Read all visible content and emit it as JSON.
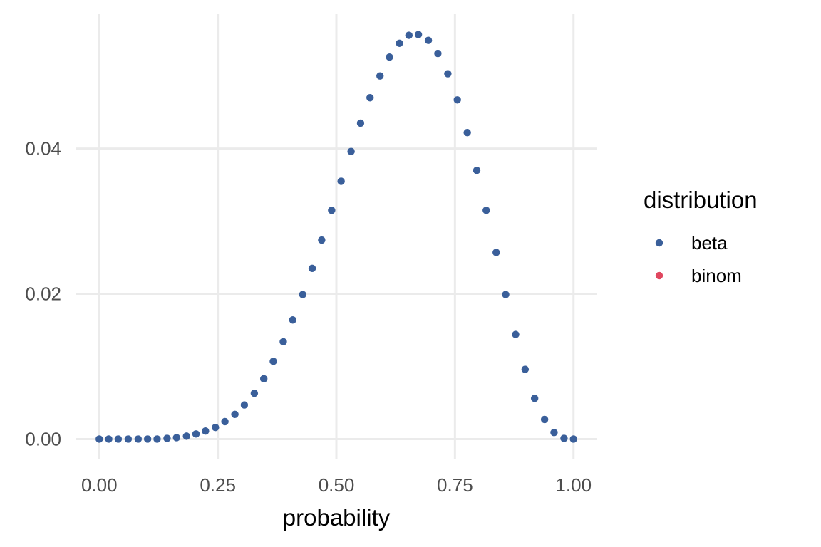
{
  "chart_data": {
    "type": "scatter",
    "title": "",
    "xlabel": "probability",
    "ylabel": "",
    "xlim": [
      -0.05,
      1.05
    ],
    "ylim": [
      -0.0028,
      0.0585
    ],
    "x_ticks": [
      0,
      0.25,
      0.5,
      0.75,
      1
    ],
    "x_tick_labels": [
      "0.00",
      "0.25",
      "0.50",
      "0.75",
      "1.00"
    ],
    "y_ticks": [
      0,
      0.02,
      0.04
    ],
    "y_tick_labels": [
      "0.00",
      "0.02",
      "0.04"
    ],
    "grid": true,
    "legend": {
      "title": "distribution",
      "position": "right",
      "entries": [
        {
          "label": "beta",
          "color": "#3a5f9a"
        },
        {
          "label": "binom",
          "color": "#e0475f"
        }
      ]
    },
    "series": [
      {
        "name": "beta",
        "color": "#3a5f9a",
        "points": [
          [
            0.0,
            0.0
          ],
          [
            0.02,
            0.0
          ],
          [
            0.04,
            0.0
          ],
          [
            0.061,
            0.0
          ],
          [
            0.082,
            0.0
          ],
          [
            0.102,
            0.0
          ],
          [
            0.122,
            0.0
          ],
          [
            0.143,
            0.0001
          ],
          [
            0.163,
            0.0002
          ],
          [
            0.184,
            0.0004
          ],
          [
            0.204,
            0.0007
          ],
          [
            0.224,
            0.0011
          ],
          [
            0.245,
            0.0016
          ],
          [
            0.265,
            0.0024
          ],
          [
            0.286,
            0.0034
          ],
          [
            0.306,
            0.0047
          ],
          [
            0.327,
            0.0063
          ],
          [
            0.347,
            0.0083
          ],
          [
            0.367,
            0.0107
          ],
          [
            0.388,
            0.0134
          ],
          [
            0.408,
            0.0164
          ],
          [
            0.429,
            0.0199
          ],
          [
            0.449,
            0.0235
          ],
          [
            0.469,
            0.0274
          ],
          [
            0.49,
            0.0315
          ],
          [
            0.51,
            0.0355
          ],
          [
            0.531,
            0.0396
          ],
          [
            0.551,
            0.0435
          ],
          [
            0.571,
            0.047
          ],
          [
            0.592,
            0.05
          ],
          [
            0.612,
            0.0526
          ],
          [
            0.633,
            0.0545
          ],
          [
            0.653,
            0.0556
          ],
          [
            0.673,
            0.0557
          ],
          [
            0.694,
            0.0549
          ],
          [
            0.714,
            0.0531
          ],
          [
            0.735,
            0.0503
          ],
          [
            0.755,
            0.0467
          ],
          [
            0.776,
            0.0422
          ],
          [
            0.796,
            0.037
          ],
          [
            0.816,
            0.0315
          ],
          [
            0.837,
            0.0257
          ],
          [
            0.857,
            0.0199
          ],
          [
            0.878,
            0.0144
          ],
          [
            0.898,
            0.0096
          ],
          [
            0.918,
            0.0056
          ],
          [
            0.939,
            0.0027
          ],
          [
            0.959,
            0.0009
          ],
          [
            0.98,
            0.0001
          ],
          [
            1.0,
            0.0
          ]
        ]
      }
    ]
  }
}
